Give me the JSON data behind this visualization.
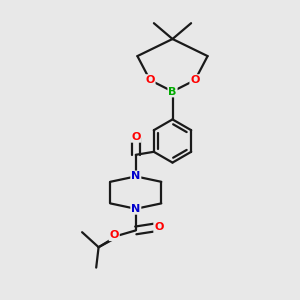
{
  "background_color": "#e8e8e8",
  "bond_color": "#1a1a1a",
  "atom_colors": {
    "O": "#ff0000",
    "N": "#0000cc",
    "B": "#00aa00",
    "C": "#1a1a1a"
  },
  "figsize": [
    3.0,
    3.0
  ],
  "dpi": 100
}
